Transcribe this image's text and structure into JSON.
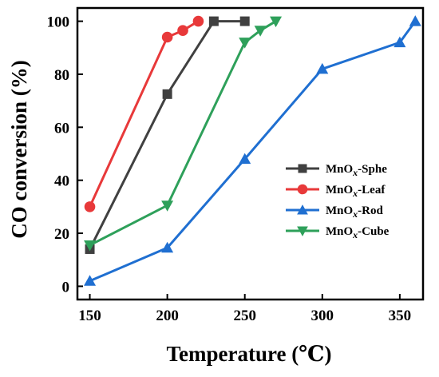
{
  "chart_data": {
    "type": "line",
    "title": "",
    "xlabel": "Temperature (℃)",
    "ylabel": "CO conversion (%)",
    "xlim": [
      142,
      365
    ],
    "ylim": [
      -5,
      105
    ],
    "x_ticks": [
      150,
      200,
      250,
      300,
      350
    ],
    "y_ticks": [
      0,
      20,
      40,
      60,
      80,
      100
    ],
    "grid": false,
    "legend_position": "center-right",
    "series": [
      {
        "name_prefix": "MnO",
        "name_sub": "x",
        "name_suffix": "-Sphe",
        "color": "#404040",
        "marker": "square",
        "x": [
          150,
          200,
          230,
          250
        ],
        "y": [
          14,
          72.5,
          100,
          100
        ]
      },
      {
        "name_prefix": "MnO",
        "name_sub": "x",
        "name_suffix": "-Leaf",
        "color": "#e8393a",
        "marker": "circle",
        "x": [
          150,
          200,
          210,
          220
        ],
        "y": [
          30,
          94,
          96.5,
          100
        ]
      },
      {
        "name_prefix": "MnO",
        "name_sub": "x",
        "name_suffix": "-Rod",
        "color": "#1f6fd1",
        "marker": "triangle-up",
        "x": [
          150,
          200,
          250,
          300,
          350,
          360
        ],
        "y": [
          2,
          14.5,
          48,
          82,
          92,
          100
        ]
      },
      {
        "name_prefix": "MnO",
        "name_sub": "x",
        "name_suffix": "-Cube",
        "color": "#2ea05a",
        "marker": "triangle-down",
        "x": [
          150,
          200,
          250,
          260,
          270
        ],
        "y": [
          15.5,
          30.5,
          92,
          96.5,
          100
        ]
      }
    ]
  }
}
